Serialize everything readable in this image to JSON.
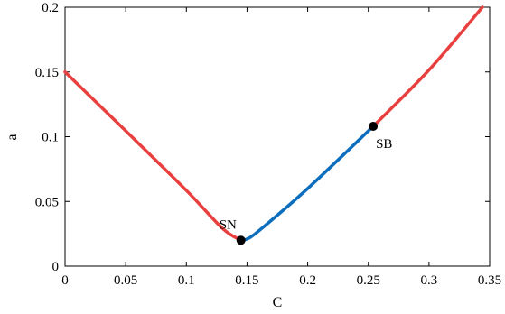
{
  "chart_data": {
    "type": "line",
    "xlabel": "C",
    "ylabel": "a",
    "xlim": [
      0,
      0.35
    ],
    "ylim": [
      0,
      0.2
    ],
    "x_ticks": [
      "0",
      "0.05",
      "0.1",
      "0.15",
      "0.2",
      "0.25",
      "0.3",
      "0.35"
    ],
    "y_ticks": [
      "0",
      "0.05",
      "0.1",
      "0.15",
      "0.2"
    ],
    "grid": false,
    "series": [
      {
        "color": "#e8403e",
        "x": [
          0,
          0.05,
          0.1,
          0.13,
          0.145
        ],
        "y": [
          0.15,
          0.1045,
          0.0585,
          0.029,
          0.02
        ]
      },
      {
        "color": "#0d6ebd",
        "x": [
          0.145,
          0.15,
          0.16,
          0.2,
          0.254
        ],
        "y": [
          0.02,
          0.021,
          0.0275,
          0.06,
          0.108
        ]
      },
      {
        "color": "#e8403e",
        "x": [
          0.254,
          0.3,
          0.344
        ],
        "y": [
          0.108,
          0.1515,
          0.2
        ]
      }
    ],
    "points": [
      {
        "label": "SN",
        "x": 0.145,
        "y": 0.02,
        "color": "#000000"
      },
      {
        "label": "SB",
        "x": 0.254,
        "y": 0.108,
        "color": "#000000"
      }
    ]
  }
}
